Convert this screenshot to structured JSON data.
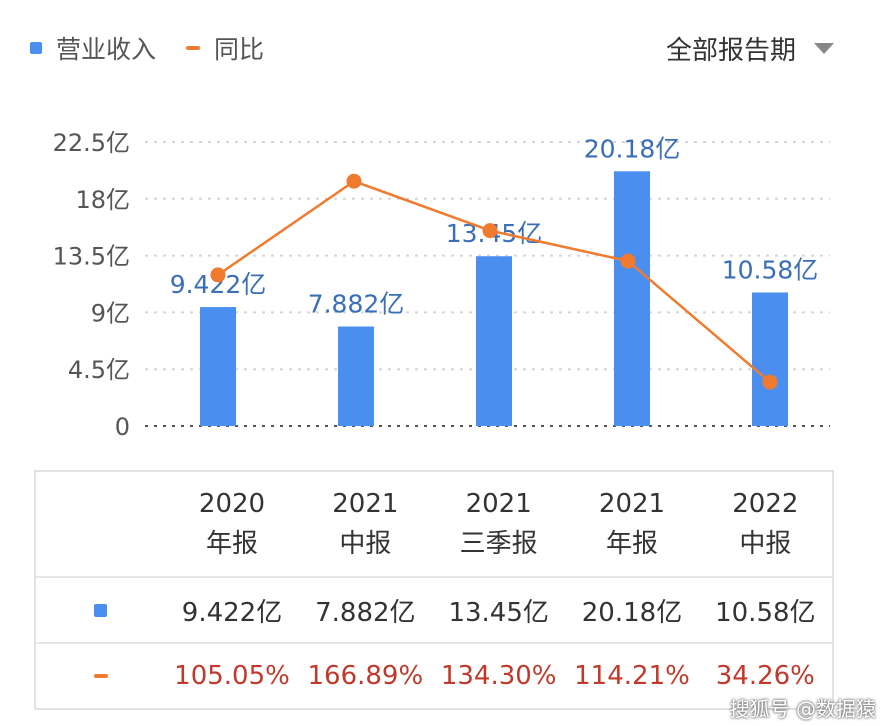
{
  "legend": {
    "revenue_label": "营业收入",
    "yoy_label": "同比"
  },
  "period_select": {
    "label": "全部报告期"
  },
  "colors": {
    "bar": "#4a8ff0",
    "line": "#f07a2e",
    "grid": "#d5d5d5",
    "axis_text": "#555555",
    "label_text": "#3a6fb8",
    "yoy_text": "#c0392b"
  },
  "chart_data": {
    "type": "bar",
    "categories": [
      "2020年报",
      "2021中报",
      "2021三季报",
      "2021年报",
      "2022中报"
    ],
    "y_ticks": [
      "22.5亿",
      "18亿",
      "13.5亿",
      "9亿",
      "4.5亿",
      "0"
    ],
    "ylim": [
      0,
      22.5
    ],
    "series": [
      {
        "name": "营业收入",
        "type": "bar",
        "values": [
          9.422,
          7.882,
          13.45,
          20.18,
          10.58
        ],
        "labels": [
          "9.422亿",
          "7.882亿",
          "13.45亿",
          "20.18亿",
          "10.58亿"
        ]
      },
      {
        "name": "同比",
        "type": "line",
        "values": [
          105.05,
          166.89,
          134.3,
          114.21,
          34.26
        ],
        "labels": [
          "105.05%",
          "166.89%",
          "134.30%",
          "114.21%",
          "34.26%"
        ]
      }
    ]
  },
  "table": {
    "columns": [
      {
        "line1": "2020",
        "line2": "年报"
      },
      {
        "line1": "2021",
        "line2": "中报"
      },
      {
        "line1": "2021",
        "line2": "三季报"
      },
      {
        "line1": "2021",
        "line2": "年报"
      },
      {
        "line1": "2022",
        "line2": "中报"
      }
    ],
    "revenue_row": [
      "9.422亿",
      "7.882亿",
      "13.45亿",
      "20.18亿",
      "10.58亿"
    ],
    "yoy_row": [
      "105.05%",
      "166.89%",
      "134.30%",
      "114.21%",
      "34.26%"
    ]
  },
  "watermark": "搜狐号 @数据猿"
}
